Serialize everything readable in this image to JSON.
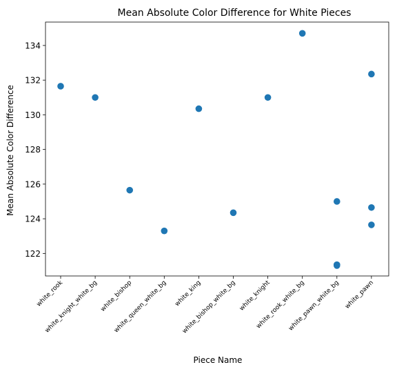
{
  "chart_data": {
    "type": "scatter",
    "title": "Mean Absolute Color Difference for White Pieces",
    "xlabel": "Piece Name",
    "ylabel": "Mean Absolute Color Difference",
    "categories": [
      "white_rook",
      "white_knight_white_bg",
      "white_bishop",
      "white_queen_white_bg",
      "white_king",
      "white_bishop_white_bg",
      "white_knight",
      "white_rook_white_bg",
      "white_pawn_white_bg",
      "white_pawn"
    ],
    "yticks": [
      122,
      124,
      126,
      128,
      130,
      132,
      134
    ],
    "ylim": [
      120.7,
      135.35
    ],
    "grid": false,
    "legend": false,
    "marker_color": "#1f77b4",
    "points": [
      {
        "x": "white_rook",
        "y": 131.65
      },
      {
        "x": "white_knight_white_bg",
        "y": 131.0
      },
      {
        "x": "white_bishop",
        "y": 125.65
      },
      {
        "x": "white_queen_white_bg",
        "y": 123.3
      },
      {
        "x": "white_king",
        "y": 130.35
      },
      {
        "x": "white_bishop_white_bg",
        "y": 124.35
      },
      {
        "x": "white_knight",
        "y": 131.0
      },
      {
        "x": "white_rook_white_bg",
        "y": 134.7
      },
      {
        "x": "white_pawn_white_bg",
        "y": 125.0
      },
      {
        "x": "white_pawn_white_bg",
        "y": 121.35
      },
      {
        "x": "white_pawn_white_bg",
        "y": 121.3
      },
      {
        "x": "white_pawn",
        "y": 132.35
      },
      {
        "x": "white_pawn",
        "y": 124.65
      },
      {
        "x": "white_pawn",
        "y": 123.65
      }
    ]
  }
}
